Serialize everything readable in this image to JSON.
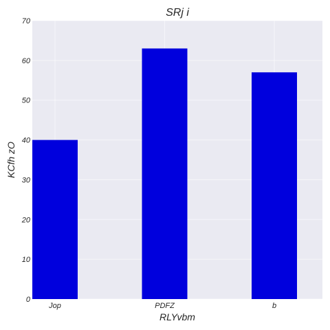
{
  "chart_data": {
    "type": "bar",
    "title": "SRj i",
    "xlabel": "RLYvbm",
    "ylabel": "KCfh zO",
    "categories": [
      "Jop",
      "PDFZ",
      "b"
    ],
    "values": [
      40,
      63,
      57
    ],
    "ylim": [
      0,
      70
    ],
    "yticks": [
      0,
      10,
      20,
      30,
      40,
      50,
      60,
      70
    ],
    "grid": true,
    "legend": "none",
    "bar_color": "#0000dd",
    "plot_background": "#eaeaf2"
  }
}
